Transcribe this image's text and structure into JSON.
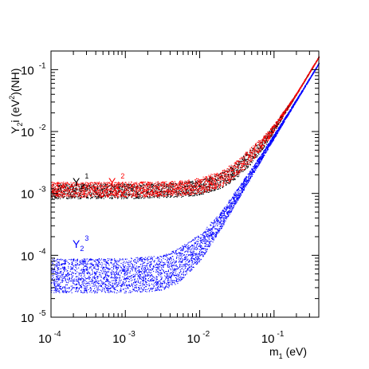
{
  "chart_data": {
    "type": "scatter",
    "title": "",
    "xlabel": "m",
    "xlabel_sub": "1",
    "xlabel_suffix": " (eV)",
    "ylabel": "Y",
    "ylabel_sub": "2",
    "ylabel_mid": "i (eV",
    "ylabel_sup": "2",
    "ylabel_suffix": ")(NH)",
    "x_scale": "log",
    "y_scale": "log",
    "xlim": [
      0.0001,
      0.4
    ],
    "ylim": [
      1e-05,
      0.2
    ],
    "grid": false,
    "legend_placement": "inside-left",
    "x_ticks": [
      {
        "base": "10",
        "exp": "-4",
        "value": 0.0001
      },
      {
        "base": "10",
        "exp": "-3",
        "value": 0.001
      },
      {
        "base": "10",
        "exp": "-2",
        "value": 0.01
      },
      {
        "base": "10",
        "exp": "-1",
        "value": 0.1
      }
    ],
    "y_ticks": [
      {
        "base": "10",
        "exp": "-5",
        "value": 1e-05
      },
      {
        "base": "10",
        "exp": "-4",
        "value": 0.0001
      },
      {
        "base": "10",
        "exp": "-3",
        "value": 0.001
      },
      {
        "base": "10",
        "exp": "-2",
        "value": 0.01
      },
      {
        "base": "10",
        "exp": "-1",
        "value": 0.1
      }
    ],
    "series": [
      {
        "name": "Y",
        "sub": "2",
        "sup": "1",
        "color": "#000000",
        "band": {
          "x": [
            0.0001,
            0.001,
            0.005,
            0.01,
            0.02,
            0.03,
            0.05,
            0.08,
            0.1,
            0.2,
            0.4
          ],
          "y_low": [
            0.00083,
            0.00083,
            0.00087,
            0.00095,
            0.00125,
            0.0017,
            0.0031,
            0.0065,
            0.01,
            0.04,
            0.16
          ],
          "y_high": [
            0.00145,
            0.00145,
            0.0015,
            0.00165,
            0.0022,
            0.0031,
            0.0055,
            0.0095,
            0.013,
            0.042,
            0.165
          ]
        }
      },
      {
        "name": "Y",
        "sub": "2",
        "sup": "2",
        "color": "#ff0000",
        "band": {
          "x": [
            0.0001,
            0.001,
            0.005,
            0.01,
            0.02,
            0.03,
            0.05,
            0.08,
            0.1,
            0.2,
            0.4
          ],
          "y_low": [
            0.00088,
            0.00088,
            0.00092,
            0.001,
            0.0013,
            0.0018,
            0.0033,
            0.0068,
            0.0102,
            0.0402,
            0.16
          ],
          "y_high": [
            0.00155,
            0.00155,
            0.0016,
            0.0018,
            0.0024,
            0.0033,
            0.0058,
            0.0098,
            0.0133,
            0.0425,
            0.166
          ]
        }
      },
      {
        "name": "Y",
        "sub": "2",
        "sup": "3",
        "color": "#0000ff",
        "band": {
          "x": [
            0.0001,
            0.001,
            0.003,
            0.005,
            0.01,
            0.02,
            0.05,
            0.1,
            0.2,
            0.4
          ],
          "y_low": [
            2.5e-05,
            2.5e-05,
            2.7e-05,
            3.5e-05,
            8e-05,
            0.00029,
            0.0019,
            0.0078,
            0.0315,
            0.126
          ],
          "y_high": [
            9e-05,
            9e-05,
            0.0001,
            0.00013,
            0.00022,
            0.00055,
            0.0026,
            0.0092,
            0.034,
            0.13
          ]
        }
      }
    ]
  }
}
